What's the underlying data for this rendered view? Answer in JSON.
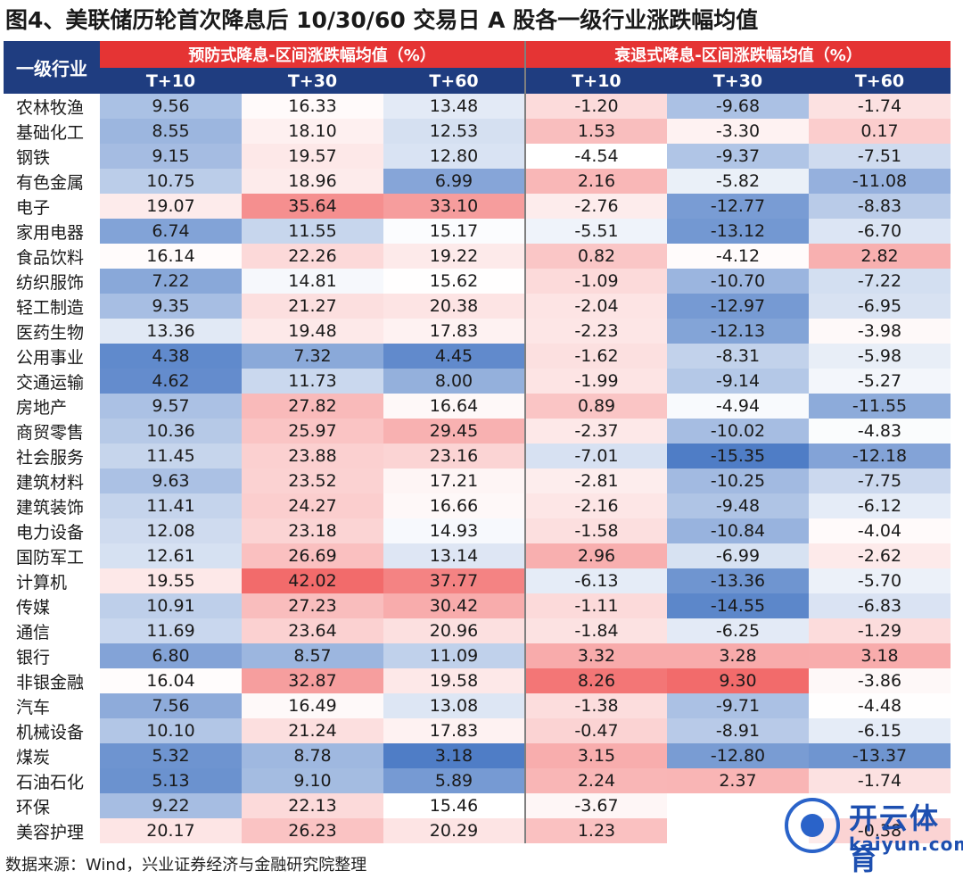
{
  "title": "图4、美联储历轮首次降息后 10/30/60 交易日 A 股各一级行业涨跌幅均值",
  "source": "数据来源：Wind，兴业证券经济与金融研究院整理",
  "watermark": {
    "cn": "开云体育",
    "en": "kaiyun.com"
  },
  "colors": {
    "header_blue": "#1f3d80",
    "header_red": "#e53434",
    "positive": "#f26b6b",
    "negative": "#4f7dc6"
  },
  "chart_data": {
    "type": "table",
    "row_header_label": "一级行业",
    "groups": [
      {
        "label": "预防式降息-区间涨跌幅均值（%）",
        "columns": [
          "T+10",
          "T+30",
          "T+60"
        ]
      },
      {
        "label": "衰退式降息-区间涨跌幅均值（%）",
        "columns": [
          "T+10",
          "T+30",
          "T+60"
        ]
      }
    ],
    "rows": [
      {
        "industry": "农林牧渔",
        "values": [
          "9.56",
          "16.33",
          "13.48",
          "-1.20",
          "-9.68",
          "-1.74"
        ]
      },
      {
        "industry": "基础化工",
        "values": [
          "8.55",
          "18.10",
          "12.53",
          "1.53",
          "-3.30",
          "0.17"
        ]
      },
      {
        "industry": "钢铁",
        "values": [
          "9.15",
          "19.57",
          "12.80",
          "-4.54",
          "-9.37",
          "-7.51"
        ]
      },
      {
        "industry": "有色金属",
        "values": [
          "10.75",
          "18.96",
          "6.99",
          "2.16",
          "-5.82",
          "-11.08"
        ]
      },
      {
        "industry": "电子",
        "values": [
          "19.07",
          "35.64",
          "33.10",
          "-2.76",
          "-12.77",
          "-8.83"
        ]
      },
      {
        "industry": "家用电器",
        "values": [
          "6.74",
          "11.55",
          "15.17",
          "-5.51",
          "-13.12",
          "-6.70"
        ]
      },
      {
        "industry": "食品饮料",
        "values": [
          "16.14",
          "22.26",
          "19.22",
          "0.82",
          "-4.12",
          "2.82"
        ]
      },
      {
        "industry": "纺织服饰",
        "values": [
          "7.22",
          "14.81",
          "15.62",
          "-1.09",
          "-10.70",
          "-7.22"
        ]
      },
      {
        "industry": "轻工制造",
        "values": [
          "9.35",
          "21.27",
          "20.38",
          "-2.04",
          "-12.97",
          "-6.95"
        ]
      },
      {
        "industry": "医药生物",
        "values": [
          "13.36",
          "19.48",
          "17.83",
          "-2.23",
          "-12.13",
          "-3.98"
        ]
      },
      {
        "industry": "公用事业",
        "values": [
          "4.38",
          "7.32",
          "4.45",
          "-1.62",
          "-8.31",
          "-5.98"
        ]
      },
      {
        "industry": "交通运输",
        "values": [
          "4.62",
          "11.73",
          "8.00",
          "-1.99",
          "-9.14",
          "-5.27"
        ]
      },
      {
        "industry": "房地产",
        "values": [
          "9.57",
          "27.82",
          "16.64",
          "0.89",
          "-4.94",
          "-11.55"
        ]
      },
      {
        "industry": "商贸零售",
        "values": [
          "10.36",
          "25.97",
          "29.45",
          "-2.37",
          "-10.02",
          "-4.83"
        ]
      },
      {
        "industry": "社会服务",
        "values": [
          "11.45",
          "23.88",
          "23.16",
          "-7.01",
          "-15.35",
          "-12.18"
        ]
      },
      {
        "industry": "建筑材料",
        "values": [
          "9.63",
          "23.52",
          "17.21",
          "-2.81",
          "-10.25",
          "-7.75"
        ]
      },
      {
        "industry": "建筑装饰",
        "values": [
          "11.41",
          "24.27",
          "16.66",
          "-2.16",
          "-9.48",
          "-6.12"
        ]
      },
      {
        "industry": "电力设备",
        "values": [
          "12.08",
          "23.18",
          "14.93",
          "-1.58",
          "-10.84",
          "-4.04"
        ]
      },
      {
        "industry": "国防军工",
        "values": [
          "12.61",
          "26.69",
          "13.14",
          "2.96",
          "-6.99",
          "-2.62"
        ]
      },
      {
        "industry": "计算机",
        "values": [
          "19.55",
          "42.02",
          "37.77",
          "-6.13",
          "-13.36",
          "-5.70"
        ]
      },
      {
        "industry": "传媒",
        "values": [
          "10.91",
          "27.23",
          "30.42",
          "-1.11",
          "-14.55",
          "-6.83"
        ]
      },
      {
        "industry": "通信",
        "values": [
          "11.69",
          "23.64",
          "20.96",
          "-1.84",
          "-6.25",
          "-1.29"
        ]
      },
      {
        "industry": "银行",
        "values": [
          "6.80",
          "8.57",
          "11.09",
          "3.32",
          "3.28",
          "3.18"
        ]
      },
      {
        "industry": "非银金融",
        "values": [
          "16.04",
          "32.87",
          "19.58",
          "8.26",
          "9.30",
          "-3.86"
        ]
      },
      {
        "industry": "汽车",
        "values": [
          "7.56",
          "16.49",
          "13.08",
          "-1.38",
          "-9.71",
          "-4.48"
        ]
      },
      {
        "industry": "机械设备",
        "values": [
          "10.10",
          "21.24",
          "17.83",
          "-0.47",
          "-8.91",
          "-6.15"
        ]
      },
      {
        "industry": "煤炭",
        "values": [
          "5.32",
          "8.78",
          "3.18",
          "3.15",
          "-12.80",
          "-13.37"
        ]
      },
      {
        "industry": "石油石化",
        "values": [
          "5.13",
          "9.10",
          "5.89",
          "2.24",
          "2.37",
          "-1.74"
        ]
      },
      {
        "industry": "环保",
        "values": [
          "9.22",
          "22.13",
          "15.46",
          "-3.67",
          "",
          ""
        ]
      },
      {
        "industry": "美容护理",
        "values": [
          "20.17",
          "26.23",
          "20.29",
          "1.23",
          "",
          "-0.38"
        ]
      }
    ]
  }
}
